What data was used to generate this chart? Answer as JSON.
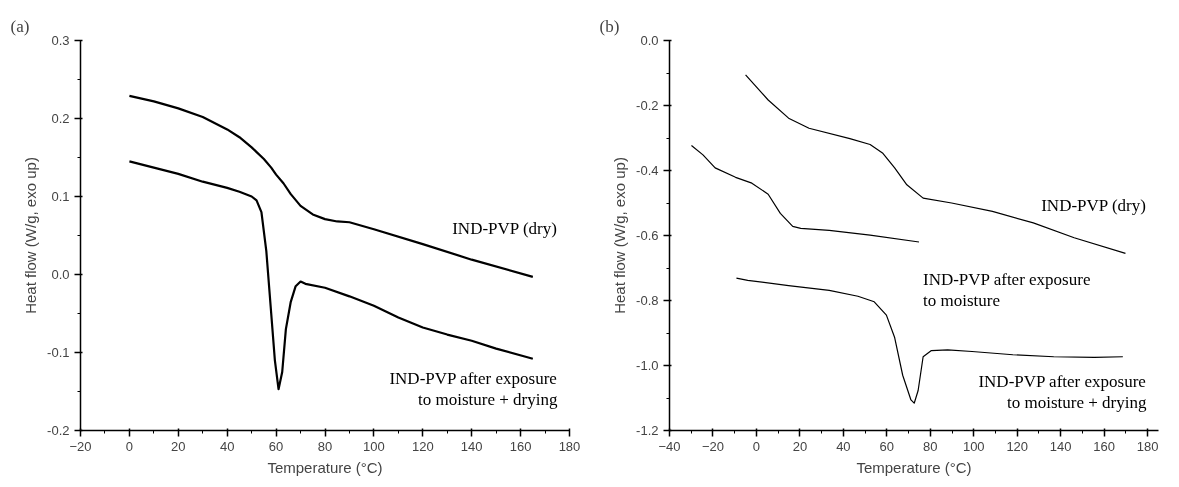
{
  "chart_data": [
    {
      "type": "line",
      "title": "(a)",
      "xlabel": "Temperature (°C)",
      "ylabel": "Heat flow (W/g, exo up)",
      "xlim": [
        -20,
        180
      ],
      "xticks": [
        -20,
        0,
        20,
        40,
        60,
        80,
        100,
        120,
        140,
        160,
        180
      ],
      "ylim": [
        -0.2,
        0.3
      ],
      "yticks": [
        {
          "value": -0.2,
          "label": "-0.2"
        },
        {
          "value": -0.1,
          "label": "-0.1"
        },
        {
          "value": 0,
          "label": "0.0"
        },
        {
          "value": 0.1,
          "label": "0.1"
        },
        {
          "value": 0.2,
          "label": "0.2"
        },
        {
          "value": 0.3,
          "label": "0.3"
        }
      ],
      "grid": false,
      "marker": "none",
      "line_style": "solid",
      "series": [
        {
          "name": "IND-PVP (dry)",
          "color": "#000000",
          "x": [
            0,
            10,
            20,
            30,
            40,
            45,
            50,
            55,
            58,
            60,
            63,
            66,
            70,
            75,
            80,
            85,
            90,
            100,
            120,
            140,
            165
          ],
          "values": [
            0.229,
            0.222,
            0.213,
            0.202,
            0.186,
            0.176,
            0.163,
            0.148,
            0.137,
            0.128,
            0.117,
            0.103,
            0.088,
            0.077,
            0.071,
            0.068,
            0.067,
            0.058,
            0.039,
            0.019,
            -0.003
          ]
        },
        {
          "name": "IND-PVP after exposure to moisture + drying",
          "color": "#000000",
          "x": [
            0,
            10,
            20,
            30,
            40,
            45,
            50,
            52,
            54,
            56,
            58,
            59.5,
            61,
            62.5,
            64,
            66,
            68,
            70,
            72,
            80,
            90,
            100,
            110,
            120,
            130,
            140,
            150,
            165
          ],
          "values": [
            0.145,
            0.137,
            0.129,
            0.119,
            0.111,
            0.106,
            0.1,
            0.095,
            0.08,
            0.03,
            -0.05,
            -0.11,
            -0.147,
            -0.125,
            -0.07,
            -0.035,
            -0.015,
            -0.009,
            -0.012,
            -0.017,
            -0.028,
            -0.04,
            -0.055,
            -0.068,
            -0.077,
            -0.085,
            -0.095,
            -0.108
          ]
        }
      ]
    },
    {
      "type": "line",
      "title": "(b)",
      "xlabel": "Temperature (°C)",
      "ylabel": "Heat flow (W/g, exo up)",
      "xlim": [
        -40,
        185
      ],
      "xticks": [
        -40,
        -20,
        0,
        20,
        40,
        60,
        80,
        100,
        120,
        140,
        160,
        180
      ],
      "ylim": [
        -1.2,
        0
      ],
      "yticks": [
        {
          "value": -1.2,
          "label": "-1.2"
        },
        {
          "value": -1,
          "label": "-1.0"
        },
        {
          "value": -0.8,
          "label": "-0.8"
        },
        {
          "value": -0.6,
          "label": "-0.6"
        },
        {
          "value": -0.4,
          "label": "-0.4"
        },
        {
          "value": -0.2,
          "label": "-0.2"
        },
        {
          "value": 0,
          "label": "0.0"
        }
      ],
      "grid": false,
      "marker": "none",
      "line_style": "solid",
      "series": [
        {
          "name": "IND-PVP (dry)",
          "color": "#000000",
          "x": [
            -5,
            5.4,
            14.8,
            24.2,
            43,
            52.3,
            58,
            63.6,
            69.2,
            76.7,
            89.8,
            108.6,
            127.4,
            146.2,
            169.8
          ],
          "values": [
            -0.106,
            -0.183,
            -0.239,
            -0.27,
            -0.302,
            -0.32,
            -0.346,
            -0.392,
            -0.444,
            -0.485,
            -0.5,
            -0.526,
            -0.561,
            -0.607,
            -0.655
          ]
        },
        {
          "name": "IND-PVP after exposure to moisture",
          "color": "#000000",
          "x": [
            -29.9,
            -24.6,
            -19,
            -9.6,
            -2.1,
            5.4,
            11,
            16.7,
            20.4,
            33.5,
            52.3,
            74.8
          ],
          "values": [
            -0.323,
            -0.352,
            -0.392,
            -0.421,
            -0.439,
            -0.473,
            -0.532,
            -0.572,
            -0.578,
            -0.584,
            -0.599,
            -0.62
          ]
        },
        {
          "name": "IND-PVP after exposure to moisture + drying",
          "color": "#000000",
          "x": [
            -9.2,
            -4,
            14.8,
            33.5,
            46.7,
            54.2,
            59.8,
            63.6,
            67.3,
            71.1,
            72.6,
            74.4,
            76.7,
            80.5,
            88,
            99.2,
            118,
            136.8,
            155.5,
            168.6
          ],
          "values": [
            -0.731,
            -0.738,
            -0.754,
            -0.769,
            -0.787,
            -0.804,
            -0.845,
            -0.914,
            -1.03,
            -1.106,
            -1.116,
            -1.077,
            -0.973,
            -0.954,
            -0.952,
            -0.957,
            -0.967,
            -0.973,
            -0.975,
            -0.973
          ]
        }
      ]
    }
  ]
}
